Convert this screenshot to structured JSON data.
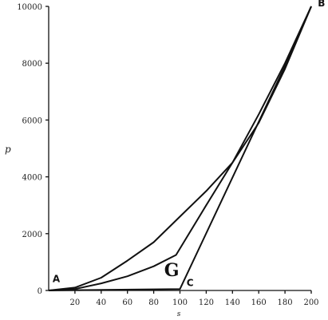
{
  "chart_data": {
    "type": "line",
    "title": "",
    "xlabel": "s",
    "ylabel": "p",
    "xlim": [
      0,
      200
    ],
    "ylim": [
      0,
      10000
    ],
    "xticks": [
      20,
      40,
      60,
      80,
      100,
      120,
      140,
      160,
      180,
      200
    ],
    "yticks": [
      0,
      2000,
      4000,
      6000,
      8000,
      10000
    ],
    "grid": false,
    "legend": "none",
    "series": [
      {
        "x": [
          0,
          20,
          40,
          60,
          80,
          100,
          120,
          140,
          160,
          180,
          200
        ],
        "y": [
          0,
          100,
          450,
          1050,
          1700,
          2600,
          3500,
          4500,
          5900,
          7800,
          10000
        ]
      },
      {
        "x": [
          0,
          20,
          40,
          60,
          80,
          97,
          120,
          140,
          160,
          180,
          200
        ],
        "y": [
          0,
          50,
          250,
          500,
          850,
          1250,
          3000,
          4500,
          6200,
          8000,
          10000
        ]
      },
      {
        "x": [
          0,
          100,
          180,
          200
        ],
        "y": [
          0,
          50,
          7900,
          10000
        ]
      }
    ],
    "annotations": [
      {
        "text": "A",
        "x": 3,
        "y": 300
      },
      {
        "text": "B",
        "x": 205,
        "y": 10000
      },
      {
        "text": "C",
        "x": 105,
        "y": 150
      },
      {
        "text": "G",
        "x": 88,
        "y": 500
      }
    ]
  }
}
